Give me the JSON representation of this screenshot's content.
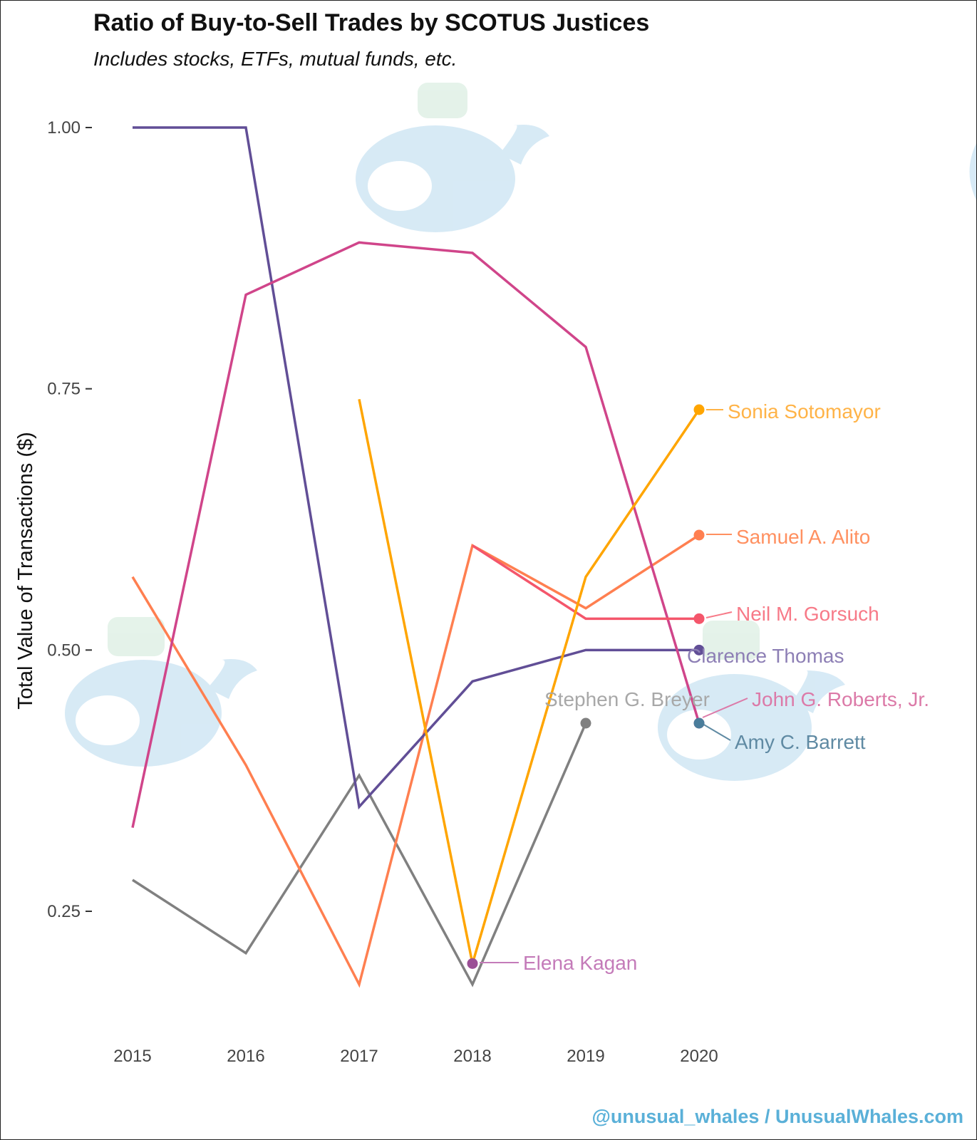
{
  "title": "Ratio of Buy-to-Sell Trades by SCOTUS Justices",
  "subtitle": "Includes stocks, ETFs, mutual funds, etc.",
  "watermark": "@unusual_whales / UnusualWhales.com",
  "chart_data": {
    "type": "line",
    "title": "Ratio of Buy-to-Sell Trades by SCOTUS Justices",
    "subtitle": "Includes stocks, ETFs, mutual funds, etc.",
    "xlabel": "",
    "ylabel": "Total Value of Transactions ($)",
    "x": [
      2015,
      2016,
      2017,
      2018,
      2019,
      2020
    ],
    "xlim": [
      2014.6,
      2021.2
    ],
    "ylim": [
      0.1,
      1.06
    ],
    "yticks": [
      0.25,
      0.5,
      0.75,
      1.0
    ],
    "ytick_labels": [
      "0.25",
      "0.50",
      "0.75",
      "1.00"
    ],
    "xtick_labels": [
      "2015",
      "2016",
      "2017",
      "2018",
      "2019",
      "2020"
    ],
    "grid": false,
    "legend": "direct labels at line ends",
    "series": [
      {
        "name": "Stephen G. Breyer",
        "color": "#808080",
        "values": [
          0.28,
          0.21,
          0.38,
          0.18,
          0.43,
          null
        ]
      },
      {
        "name": "Samuel A. Alito",
        "color": "#ff7f50",
        "values": [
          0.57,
          0.39,
          0.18,
          0.6,
          0.54,
          0.61
        ]
      },
      {
        "name": "Clarence Thomas",
        "color": "#614e96",
        "values": [
          1.0,
          1.0,
          0.35,
          0.47,
          0.5,
          0.5
        ]
      },
      {
        "name": "John G. Roberts, Jr.",
        "color": "#d0458a",
        "values": [
          0.33,
          0.84,
          0.89,
          0.88,
          0.79,
          0.43
        ]
      },
      {
        "name": "Neil M. Gorsuch",
        "color": "#f4566b",
        "values": [
          null,
          null,
          null,
          0.6,
          0.53,
          0.53
        ]
      },
      {
        "name": "Sonia Sotomayor",
        "color": "#ffa500",
        "values": [
          null,
          null,
          0.74,
          0.2,
          0.57,
          0.73
        ]
      },
      {
        "name": "Elena Kagan",
        "color": "#9b4f96",
        "values": [
          null,
          null,
          null,
          0.2,
          null,
          null
        ]
      },
      {
        "name": "Amy C. Barrett",
        "color": "#4a7d9b",
        "values": [
          null,
          null,
          null,
          null,
          null,
          0.43
        ]
      }
    ],
    "labels": [
      {
        "name": "Sonia Sotomayor",
        "color": "#ffb347",
        "point": [
          2020,
          0.73
        ]
      },
      {
        "name": "Samuel A. Alito",
        "color": "#ff9060",
        "point": [
          2020,
          0.61
        ]
      },
      {
        "name": "Neil M. Gorsuch",
        "color": "#f77a88",
        "point": [
          2020,
          0.53
        ]
      },
      {
        "name": "Clarence Thomas",
        "color": "#8d7fb5",
        "point": [
          2020,
          0.5
        ]
      },
      {
        "name": "John G. Roberts, Jr.",
        "color": "#dc7aa8",
        "point": [
          2020,
          0.43
        ]
      },
      {
        "name": "Stephen G. Breyer",
        "color": "#a8a8a8",
        "point": [
          2019,
          0.43
        ]
      },
      {
        "name": "Amy C. Barrett",
        "color": "#5f8aa3",
        "point": [
          2020,
          0.43
        ]
      },
      {
        "name": "Elena Kagan",
        "color": "#c47bb9",
        "point": [
          2018,
          0.2
        ]
      }
    ]
  }
}
